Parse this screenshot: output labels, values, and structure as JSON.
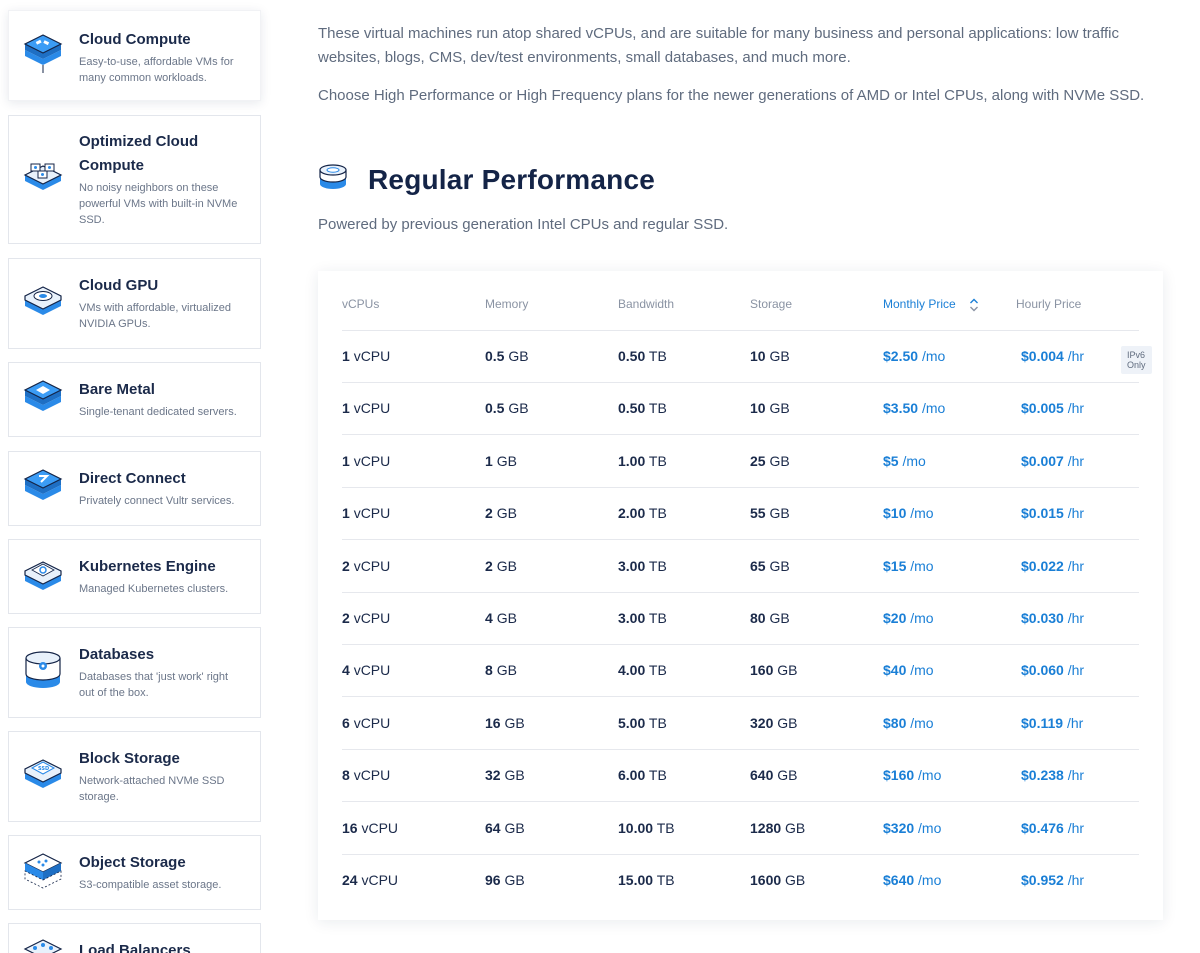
{
  "sidebar": {
    "items": [
      {
        "title": "Cloud Compute",
        "desc": "Easy-to-use, affordable VMs for many common workloads.",
        "icon": "cloud-compute-icon"
      },
      {
        "title": "Optimized Cloud Compute",
        "desc": "No noisy neighbors on these powerful VMs with built-in NVMe SSD.",
        "icon": "optimized-compute-icon"
      },
      {
        "title": "Cloud GPU",
        "desc": "VMs with affordable, virtualized NVIDIA GPUs.",
        "icon": "gpu-icon"
      },
      {
        "title": "Bare Metal",
        "desc": "Single-tenant dedicated servers.",
        "icon": "bare-metal-icon"
      },
      {
        "title": "Direct Connect",
        "desc": "Privately connect Vultr services.",
        "icon": "direct-connect-icon"
      },
      {
        "title": "Kubernetes Engine",
        "desc": "Managed Kubernetes clusters.",
        "icon": "kubernetes-icon"
      },
      {
        "title": "Databases",
        "desc": "Databases that 'just work' right out of the box.",
        "icon": "database-icon"
      },
      {
        "title": "Block Storage",
        "desc": "Network-attached NVMe SSD storage.",
        "icon": "block-storage-icon"
      },
      {
        "title": "Object Storage",
        "desc": "S3-compatible asset storage.",
        "icon": "object-storage-icon"
      },
      {
        "title": "Load Balancers",
        "desc": "",
        "icon": "load-balancer-icon"
      }
    ]
  },
  "intro": {
    "p1": "These virtual machines run atop shared vCPUs, and are suitable for many business and personal applications: low traffic websites, blogs, CMS, dev/test environments, small databases, and much more.",
    "p2": "Choose High Performance or High Frequency plans for the newer generations of AMD or Intel CPUs, along with NVMe SSD."
  },
  "section": {
    "title": "Regular Performance",
    "subtitle": "Powered by previous generation Intel CPUs and regular SSD."
  },
  "table": {
    "headers": {
      "vcpus": "vCPUs",
      "memory": "Memory",
      "bandwidth": "Bandwidth",
      "storage": "Storage",
      "monthly": "Monthly Price",
      "hourly": "Hourly Price"
    },
    "rows": [
      {
        "vcpu": "1",
        "vcpu_unit": "vCPU",
        "mem": "0.5",
        "mem_unit": "GB",
        "bw": "0.50",
        "bw_unit": "TB",
        "st": "10",
        "st_unit": "GB",
        "mo": "$2.50",
        "mo_unit": "/mo",
        "hr": "$0.004",
        "hr_unit": "/hr",
        "badge": "IPv6 Only"
      },
      {
        "vcpu": "1",
        "vcpu_unit": "vCPU",
        "mem": "0.5",
        "mem_unit": "GB",
        "bw": "0.50",
        "bw_unit": "TB",
        "st": "10",
        "st_unit": "GB",
        "mo": "$3.50",
        "mo_unit": "/mo",
        "hr": "$0.005",
        "hr_unit": "/hr"
      },
      {
        "vcpu": "1",
        "vcpu_unit": "vCPU",
        "mem": "1",
        "mem_unit": "GB",
        "bw": "1.00",
        "bw_unit": "TB",
        "st": "25",
        "st_unit": "GB",
        "mo": "$5",
        "mo_unit": "/mo",
        "hr": "$0.007",
        "hr_unit": "/hr"
      },
      {
        "vcpu": "1",
        "vcpu_unit": "vCPU",
        "mem": "2",
        "mem_unit": "GB",
        "bw": "2.00",
        "bw_unit": "TB",
        "st": "55",
        "st_unit": "GB",
        "mo": "$10",
        "mo_unit": "/mo",
        "hr": "$0.015",
        "hr_unit": "/hr"
      },
      {
        "vcpu": "2",
        "vcpu_unit": "vCPU",
        "mem": "2",
        "mem_unit": "GB",
        "bw": "3.00",
        "bw_unit": "TB",
        "st": "65",
        "st_unit": "GB",
        "mo": "$15",
        "mo_unit": "/mo",
        "hr": "$0.022",
        "hr_unit": "/hr"
      },
      {
        "vcpu": "2",
        "vcpu_unit": "vCPU",
        "mem": "4",
        "mem_unit": "GB",
        "bw": "3.00",
        "bw_unit": "TB",
        "st": "80",
        "st_unit": "GB",
        "mo": "$20",
        "mo_unit": "/mo",
        "hr": "$0.030",
        "hr_unit": "/hr"
      },
      {
        "vcpu": "4",
        "vcpu_unit": "vCPU",
        "mem": "8",
        "mem_unit": "GB",
        "bw": "4.00",
        "bw_unit": "TB",
        "st": "160",
        "st_unit": "GB",
        "mo": "$40",
        "mo_unit": "/mo",
        "hr": "$0.060",
        "hr_unit": "/hr"
      },
      {
        "vcpu": "6",
        "vcpu_unit": "vCPU",
        "mem": "16",
        "mem_unit": "GB",
        "bw": "5.00",
        "bw_unit": "TB",
        "st": "320",
        "st_unit": "GB",
        "mo": "$80",
        "mo_unit": "/mo",
        "hr": "$0.119",
        "hr_unit": "/hr"
      },
      {
        "vcpu": "8",
        "vcpu_unit": "vCPU",
        "mem": "32",
        "mem_unit": "GB",
        "bw": "6.00",
        "bw_unit": "TB",
        "st": "640",
        "st_unit": "GB",
        "mo": "$160",
        "mo_unit": "/mo",
        "hr": "$0.238",
        "hr_unit": "/hr"
      },
      {
        "vcpu": "16",
        "vcpu_unit": "vCPU",
        "mem": "64",
        "mem_unit": "GB",
        "bw": "10.00",
        "bw_unit": "TB",
        "st": "1280",
        "st_unit": "GB",
        "mo": "$320",
        "mo_unit": "/mo",
        "hr": "$0.476",
        "hr_unit": "/hr"
      },
      {
        "vcpu": "24",
        "vcpu_unit": "vCPU",
        "mem": "96",
        "mem_unit": "GB",
        "bw": "15.00",
        "bw_unit": "TB",
        "st": "1600",
        "st_unit": "GB",
        "mo": "$640",
        "mo_unit": "/mo",
        "hr": "$0.952",
        "hr_unit": "/hr"
      }
    ]
  },
  "colors": {
    "accent": "#1a7fd6",
    "heading": "#142447",
    "text": "#1b2a4a",
    "muted": "#5f6b7e",
    "icon_blue": "#2a8ae8",
    "icon_dark": "#142447"
  }
}
